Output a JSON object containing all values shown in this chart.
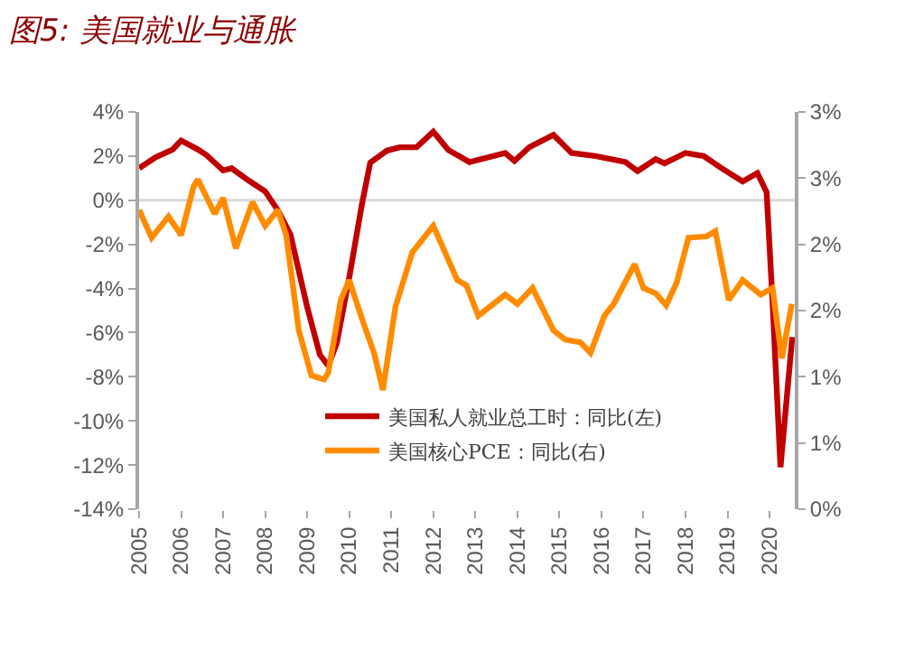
{
  "chart_data": {
    "type": "line",
    "title": "图5: 美国就业与通胀",
    "xlim": [
      2005,
      2020.6
    ],
    "xticks": [
      2005,
      2006,
      2007,
      2008,
      2009,
      2010,
      2011,
      2012,
      2013,
      2014,
      2015,
      2016,
      2017,
      2018,
      2019,
      2020
    ],
    "ylim": [
      -14,
      4
    ],
    "yticks": [
      {
        "value": 4,
        "label": "4%"
      },
      {
        "value": 2,
        "label": "2%"
      },
      {
        "value": 0,
        "label": "0%"
      },
      {
        "value": -2,
        "label": "-2%"
      },
      {
        "value": -4,
        "label": "-4%"
      },
      {
        "value": -6,
        "label": "-6%"
      },
      {
        "value": -8,
        "label": "-8%"
      },
      {
        "value": -10,
        "label": "-10%"
      },
      {
        "value": -12,
        "label": "-12%"
      },
      {
        "value": -14,
        "label": "-14%"
      }
    ],
    "y2lim": [
      0,
      3
    ],
    "y2ticks": [
      {
        "value": 3,
        "label": "3%"
      },
      {
        "value": 2.5,
        "label": "3%"
      },
      {
        "value": 2,
        "label": "2%"
      },
      {
        "value": 1.5,
        "label": "2%"
      },
      {
        "value": 1,
        "label": "1%"
      },
      {
        "value": 0.5,
        "label": "1%"
      },
      {
        "value": 0,
        "label": "0%"
      }
    ],
    "grid": false,
    "legend": "bottom",
    "ref_lines": [
      {
        "axis": "y",
        "value": 0,
        "color": "#d9d9d9"
      }
    ],
    "series": [
      {
        "name": "美国私人就业总工时：同比(左)",
        "color": "#c00000",
        "x": [
          2005.0,
          2005.4,
          2005.8,
          2006.0,
          2006.4,
          2006.6,
          2007.0,
          2007.2,
          2007.6,
          2008.0,
          2008.3,
          2008.6,
          2009.0,
          2009.3,
          2009.5,
          2009.7,
          2010.0,
          2010.3,
          2010.5,
          2010.9,
          2011.2,
          2011.6,
          2012.0,
          2012.36,
          2012.86,
          2013.71,
          2013.93,
          2014.29,
          2014.86,
          2015.29,
          2015.86,
          2016.57,
          2016.86,
          2017.29,
          2017.5,
          2018.0,
          2018.43,
          2018.86,
          2019.36,
          2019.71,
          2019.93,
          2020.07,
          2020.26,
          2020.54
        ],
        "values": [
          1.45,
          1.95,
          2.3,
          2.7,
          2.3,
          2.05,
          1.35,
          1.45,
          0.9,
          0.4,
          -0.45,
          -1.55,
          -4.85,
          -7.0,
          -7.5,
          -6.5,
          -3.5,
          -0.2,
          1.7,
          2.25,
          2.4,
          2.4,
          3.1,
          2.27,
          1.73,
          2.14,
          1.78,
          2.41,
          2.96,
          2.14,
          2.0,
          1.73,
          1.32,
          1.86,
          1.67,
          2.14,
          2.0,
          1.45,
          0.85,
          1.23,
          0.36,
          -4.58,
          -12.1,
          -6.2
        ]
      },
      {
        "name": "美国核心PCE：同比(右)",
        "color": "#ff8c00",
        "axis": "y2",
        "x": [
          2005.0,
          2005.3,
          2005.7,
          2006.0,
          2006.3,
          2006.4,
          2006.8,
          2007.0,
          2007.3,
          2007.7,
          2008.0,
          2008.3,
          2008.5,
          2008.8,
          2009.1,
          2009.4,
          2009.5,
          2009.8,
          2010.0,
          2010.3,
          2010.6,
          2010.8,
          2011.1,
          2011.5,
          2012.0,
          2012.57,
          2012.79,
          2013.07,
          2013.71,
          2014.0,
          2014.36,
          2014.86,
          2015.14,
          2015.5,
          2015.74,
          2016.07,
          2016.29,
          2016.79,
          2017.0,
          2017.29,
          2017.54,
          2017.79,
          2018.07,
          2018.5,
          2018.71,
          2019.03,
          2019.36,
          2019.79,
          2020.07,
          2020.29,
          2020.53
        ],
        "values": [
          2.26,
          2.05,
          2.21,
          2.07,
          2.44,
          2.49,
          2.23,
          2.35,
          1.97,
          2.32,
          2.14,
          2.26,
          2.07,
          1.35,
          1.01,
          0.98,
          1.03,
          1.58,
          1.73,
          1.44,
          1.17,
          0.9,
          1.53,
          1.94,
          2.14,
          1.73,
          1.69,
          1.46,
          1.62,
          1.55,
          1.67,
          1.35,
          1.28,
          1.26,
          1.18,
          1.46,
          1.55,
          1.85,
          1.67,
          1.63,
          1.54,
          1.71,
          2.05,
          2.06,
          2.1,
          1.58,
          1.73,
          1.62,
          1.67,
          1.14,
          1.55
        ]
      }
    ]
  }
}
